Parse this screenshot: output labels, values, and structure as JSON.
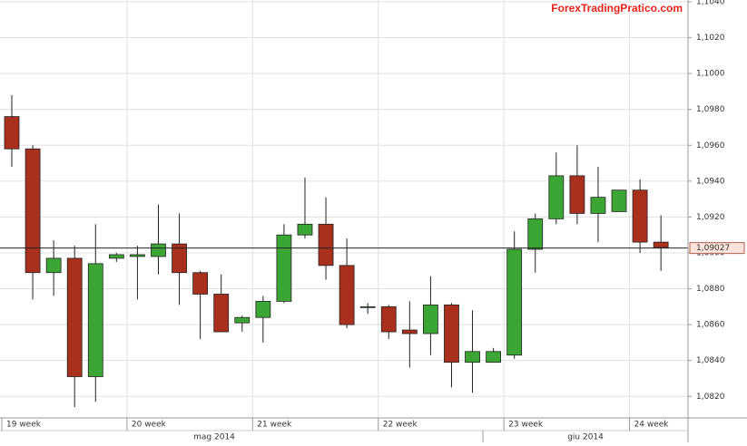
{
  "chart_data": {
    "type": "candlestick",
    "watermark": "ForexTradingPratico.com",
    "categories": [
      null,
      null,
      null,
      null,
      null,
      null,
      null,
      null,
      null,
      null,
      null,
      null,
      null,
      null,
      null,
      null,
      null,
      null,
      null,
      null,
      null,
      null,
      null,
      null,
      null,
      null,
      null,
      null,
      null,
      null,
      null,
      null
    ],
    "open": [
      1.0976,
      1.0958,
      1.0889,
      1.0897,
      1.0831,
      1.0897,
      1.0898,
      1.0898,
      1.0905,
      1.0889,
      1.0877,
      1.0861,
      1.0864,
      1.0873,
      1.091,
      1.0916,
      1.0893,
      1.087,
      1.087,
      1.0857,
      1.0855,
      1.0871,
      1.0839,
      1.0839,
      1.0843,
      1.0902,
      1.0919,
      1.0943,
      1.0922,
      1.0923,
      1.0935,
      1.0906
    ],
    "high": [
      1.0988,
      1.096,
      1.0907,
      1.0904,
      1.0916,
      1.09,
      1.0904,
      1.0927,
      1.0922,
      1.089,
      1.0888,
      1.0865,
      1.0876,
      1.0916,
      1.0942,
      1.0931,
      1.0908,
      1.0872,
      1.0871,
      1.0873,
      1.0887,
      1.0872,
      1.0868,
      1.0847,
      1.0912,
      1.0922,
      1.0956,
      1.096,
      1.0948,
      1.0935,
      1.0941,
      1.0921
    ],
    "low": [
      1.0948,
      1.0874,
      1.0876,
      1.0814,
      1.0817,
      1.0895,
      1.0874,
      1.0888,
      1.0871,
      1.0852,
      1.0856,
      1.0856,
      1.085,
      1.0872,
      1.0908,
      1.0885,
      1.0858,
      1.0866,
      1.0852,
      1.0836,
      1.0843,
      1.0825,
      1.0822,
      1.0839,
      1.0841,
      1.0889,
      1.0916,
      1.0916,
      1.0906,
      1.0923,
      1.09,
      1.089
    ],
    "close": [
      1.0958,
      1.0889,
      1.0897,
      1.0831,
      1.0894,
      1.0899,
      1.0899,
      1.0905,
      1.0889,
      1.0877,
      1.0856,
      1.0864,
      1.0873,
      1.091,
      1.0916,
      1.0893,
      1.086,
      1.087,
      1.0856,
      1.0855,
      1.0871,
      1.0839,
      1.0845,
      1.0845,
      1.0902,
      1.0919,
      1.0943,
      1.0922,
      1.0931,
      1.0935,
      1.0906,
      1.0903
    ],
    "up_color": "#3ca635",
    "down_color": "#a8301c",
    "ylim": [
      1.0808,
      1.1041
    ],
    "yticks": [
      {
        "value": 1.082,
        "label": "1,0820"
      },
      {
        "value": 1.084,
        "label": "1,0840"
      },
      {
        "value": 1.086,
        "label": "1,0860"
      },
      {
        "value": 1.088,
        "label": "1,0880"
      },
      {
        "value": 1.09,
        "label": "1,0900"
      },
      {
        "value": 1.092,
        "label": "1,0920"
      },
      {
        "value": 1.094,
        "label": "1,0940"
      },
      {
        "value": 1.096,
        "label": "1,0960"
      },
      {
        "value": 1.098,
        "label": "1,0980"
      },
      {
        "value": 1.1,
        "label": "1,1000"
      },
      {
        "value": 1.102,
        "label": "1,1020"
      },
      {
        "value": 1.104,
        "label": "1,1040"
      }
    ],
    "current_price": {
      "value": 1.09027,
      "label": "1,09027"
    },
    "week_labels": [
      {
        "index": 0,
        "label": "19 week"
      },
      {
        "index": 6,
        "label": "20 week"
      },
      {
        "index": 12,
        "label": "21 week"
      },
      {
        "index": 18,
        "label": "22 week"
      },
      {
        "index": 24,
        "label": "23 week"
      },
      {
        "index": 30,
        "label": "24 week"
      }
    ],
    "month_labels": [
      {
        "index": 0,
        "label": "mag 2014"
      },
      {
        "index": 23,
        "label": "giu 2014"
      }
    ],
    "grid": true
  }
}
